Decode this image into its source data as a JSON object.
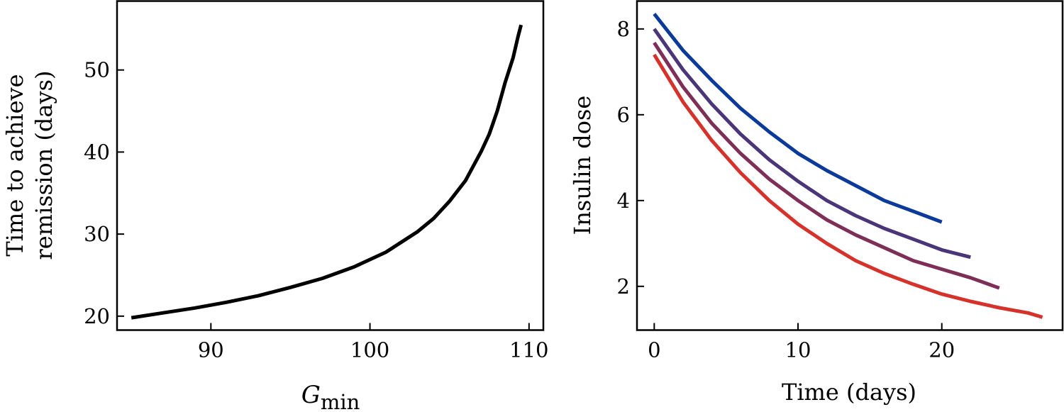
{
  "chart_data": [
    {
      "type": "line",
      "title": "",
      "xlabel": "G",
      "xlabel_subscript": "min",
      "ylabel_lines": [
        "Time to achieve",
        "remission (days)"
      ],
      "xlim": [
        84.1,
        110.9
      ],
      "ylim": [
        18.3,
        58.4
      ],
      "xticks": [
        90,
        100,
        110
      ],
      "yticks": [
        20,
        30,
        40,
        50
      ],
      "grid": false,
      "series": [
        {
          "color": "#000000",
          "x": [
            85,
            87,
            89,
            91,
            93,
            95,
            97,
            99,
            101,
            103,
            104,
            105,
            106,
            107,
            107.5,
            108,
            108.5,
            109,
            109.3,
            109.5
          ],
          "y": [
            19.8,
            20.4,
            21.0,
            21.7,
            22.5,
            23.5,
            24.6,
            26.0,
            27.8,
            30.3,
            31.9,
            34.0,
            36.5,
            40.1,
            42.2,
            45.0,
            48.5,
            51.5,
            54.0,
            55.5
          ]
        }
      ]
    },
    {
      "type": "line",
      "title": "",
      "xlabel": "Time (days)",
      "ylabel": "Insulin dose",
      "xlim": [
        -1.2,
        28.4
      ],
      "ylim": [
        0.98,
        8.65
      ],
      "xticks": [
        0,
        10,
        20
      ],
      "yticks": [
        2,
        4,
        6,
        8
      ],
      "grid": false,
      "series": [
        {
          "color": "#0b3a9a",
          "x": [
            0,
            2,
            4,
            6,
            8,
            10,
            12,
            14,
            16,
            18,
            20
          ],
          "y": [
            8.35,
            7.5,
            6.8,
            6.15,
            5.6,
            5.1,
            4.7,
            4.35,
            4.0,
            3.75,
            3.5
          ]
        },
        {
          "color": "#4a3578",
          "x": [
            0,
            2,
            4,
            6,
            8,
            10,
            12,
            14,
            16,
            18,
            20,
            22
          ],
          "y": [
            8.0,
            7.05,
            6.25,
            5.55,
            4.95,
            4.45,
            4.0,
            3.65,
            3.35,
            3.1,
            2.85,
            2.68
          ]
        },
        {
          "color": "#7e2f57",
          "x": [
            0,
            2,
            4,
            6,
            8,
            10,
            12,
            14,
            16,
            18,
            20,
            22,
            24
          ],
          "y": [
            7.68,
            6.65,
            5.8,
            5.1,
            4.5,
            4.0,
            3.55,
            3.2,
            2.9,
            2.6,
            2.4,
            2.2,
            1.96
          ]
        },
        {
          "color": "#d5322b",
          "x": [
            0,
            2,
            4,
            6,
            8,
            10,
            12,
            14,
            16,
            18,
            20,
            22,
            24,
            26,
            27
          ],
          "y": [
            7.4,
            6.3,
            5.4,
            4.65,
            4.0,
            3.45,
            3.0,
            2.6,
            2.3,
            2.05,
            1.82,
            1.65,
            1.5,
            1.38,
            1.28
          ]
        }
      ]
    }
  ]
}
